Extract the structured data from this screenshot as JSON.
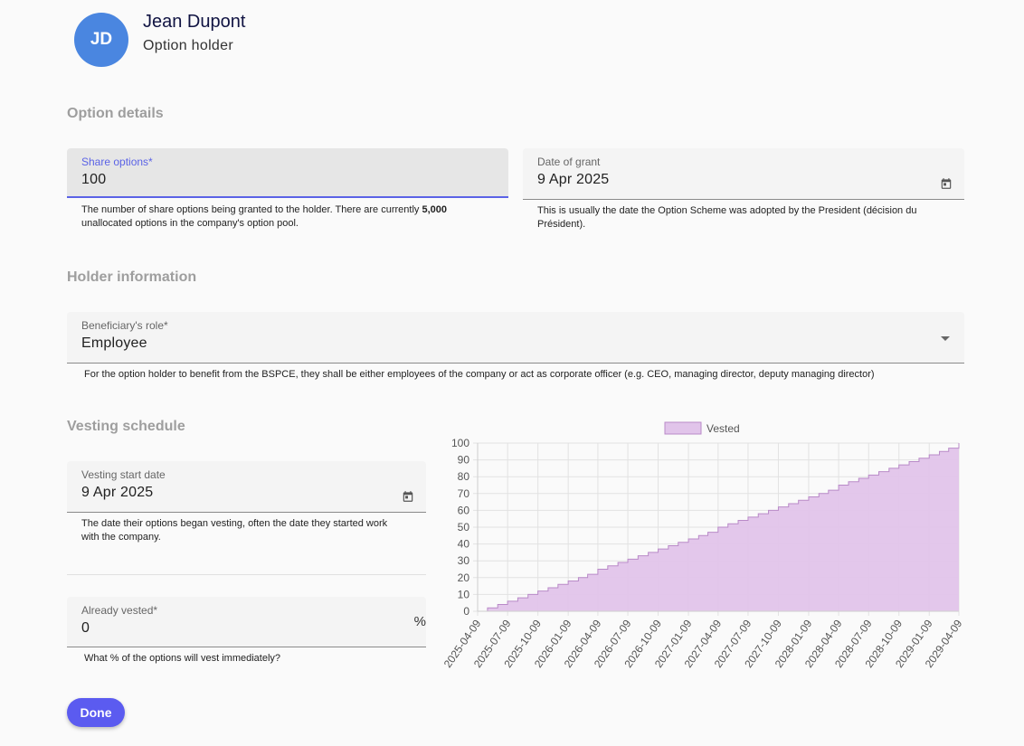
{
  "holder": {
    "initials": "JD",
    "name": "Jean Dupont",
    "role": "Option holder"
  },
  "sections": {
    "option_details": "Option details",
    "holder_information": "Holder information",
    "vesting_schedule": "Vesting schedule"
  },
  "share_options": {
    "label": "Share options*",
    "value": "100",
    "helper_pre": " The number of share options being granted to the holder. There are currently ",
    "helper_bold": "5,000",
    "helper_post": " unallocated options in the company's option pool."
  },
  "date_of_grant": {
    "label": "Date of grant",
    "value": "9 Apr 2025",
    "helper": "This is usually the date the Option Scheme was adopted by the President (décision du Président)."
  },
  "beneficiary_role": {
    "label": "Beneficiary's role*",
    "value": "Employee",
    "helper": "For the option holder to benefit from the BSPCE, they shall be either employees of the company or act as corporate officer (e.g. CEO, managing director, deputy managing director)"
  },
  "vesting_start_date": {
    "label": "Vesting start date",
    "value": "9 Apr 2025",
    "helper": " The date their options began vesting, often the date they started work with the company."
  },
  "already_vested": {
    "label": "Already vested*",
    "value": "0",
    "suffix": "%",
    "helper": "What % of the options will vest immediately?"
  },
  "done_label": "Done",
  "colors": {
    "accent": "#5b5bf0",
    "avatar": "#4a86e0",
    "vested_fill": "#e1c4ea",
    "vested_stroke": "#b98ac8"
  },
  "icons": {
    "calendar": "calendar-icon",
    "dropdown": "chevron-down-icon"
  },
  "chart_data": {
    "type": "area",
    "step": true,
    "legend": [
      "Vested"
    ],
    "legend_position": "top",
    "grid": true,
    "ylim": [
      0,
      100
    ],
    "yticks": [
      0,
      10,
      20,
      30,
      40,
      50,
      60,
      70,
      80,
      90,
      100
    ],
    "x_ticklabels": [
      "2025-04-09",
      "2025-07-09",
      "2025-10-09",
      "2026-01-09",
      "2026-04-09",
      "2026-07-09",
      "2026-10-09",
      "2027-01-09",
      "2027-04-09",
      "2027-07-09",
      "2027-10-09",
      "2028-01-09",
      "2028-04-09",
      "2028-07-09",
      "2028-10-09",
      "2029-01-09",
      "2029-04-09"
    ],
    "series": [
      {
        "name": "Vested",
        "x": [
          "2025-04-09",
          "2025-05-09",
          "2025-06-09",
          "2025-07-09",
          "2025-08-09",
          "2025-09-09",
          "2025-10-09",
          "2025-11-09",
          "2025-12-09",
          "2026-01-09",
          "2026-02-09",
          "2026-03-09",
          "2026-04-09",
          "2026-05-09",
          "2026-06-09",
          "2026-07-09",
          "2026-08-09",
          "2026-09-09",
          "2026-10-09",
          "2026-11-09",
          "2026-12-09",
          "2027-01-09",
          "2027-02-09",
          "2027-03-09",
          "2027-04-09",
          "2027-05-09",
          "2027-06-09",
          "2027-07-09",
          "2027-08-09",
          "2027-09-09",
          "2027-10-09",
          "2027-11-09",
          "2027-12-09",
          "2028-01-09",
          "2028-02-09",
          "2028-03-09",
          "2028-04-09",
          "2028-05-09",
          "2028-06-09",
          "2028-07-09",
          "2028-08-09",
          "2028-09-09",
          "2028-10-09",
          "2028-11-09",
          "2028-12-09",
          "2029-01-09",
          "2029-02-09",
          "2029-03-09",
          "2029-04-09"
        ],
        "values": [
          0,
          2,
          4,
          6,
          8,
          10,
          12,
          14,
          16,
          18,
          20,
          22,
          25,
          27,
          29,
          31,
          33,
          35,
          37,
          39,
          41,
          43,
          45,
          47,
          50,
          52,
          54,
          56,
          58,
          60,
          62,
          64,
          66,
          68,
          70,
          72,
          75,
          77,
          79,
          81,
          83,
          85,
          87,
          89,
          91,
          93,
          95,
          97,
          100
        ]
      }
    ]
  }
}
